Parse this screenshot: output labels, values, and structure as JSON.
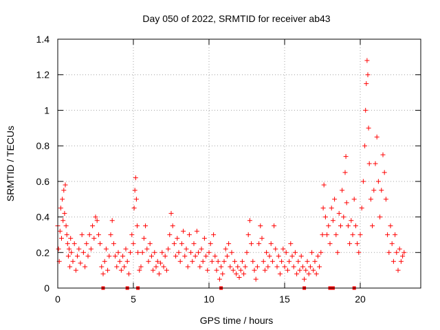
{
  "chart_data": {
    "type": "scatter",
    "title": "Day 050 of 2022, SRMTID for receiver ab43",
    "xlabel": "GPS time / hours",
    "ylabel": "SRMTID / TECUs",
    "xlim": [
      0,
      24
    ],
    "ylim": [
      0,
      1.4
    ],
    "xticks": [
      0,
      5,
      10,
      15,
      20
    ],
    "yticks": [
      0,
      0.2,
      0.4,
      0.6,
      0.8,
      1,
      1.2,
      1.4
    ],
    "xtick_labels": [
      "0",
      "5",
      "10",
      "15",
      "20"
    ],
    "ytick_labels": [
      "0",
      "0.2",
      "0.4",
      "0.6",
      "0.8",
      "1",
      "1.2",
      "1.4"
    ],
    "grid": true,
    "marker": "plus",
    "color": "#ff0000",
    "series": [
      {
        "name": "SRMTID ab43",
        "points": [
          [
            0.0,
            0.35
          ],
          [
            0.05,
            0.22
          ],
          [
            0.1,
            0.15
          ],
          [
            0.15,
            0.32
          ],
          [
            0.2,
            0.45
          ],
          [
            0.25,
            0.28
          ],
          [
            0.3,
            0.5
          ],
          [
            0.35,
            0.38
          ],
          [
            0.4,
            0.55
          ],
          [
            0.45,
            0.42
          ],
          [
            0.5,
            0.58
          ],
          [
            0.55,
            0.35
          ],
          [
            0.6,
            0.3
          ],
          [
            0.65,
            0.25
          ],
          [
            0.7,
            0.18
          ],
          [
            0.75,
            0.22
          ],
          [
            0.8,
            0.12
          ],
          [
            0.85,
            0.28
          ],
          [
            0.9,
            0.2
          ],
          [
            1.0,
            0.15
          ],
          [
            1.1,
            0.25
          ],
          [
            1.2,
            0.1
          ],
          [
            1.3,
            0.18
          ],
          [
            1.4,
            0.22
          ],
          [
            1.5,
            0.14
          ],
          [
            1.6,
            0.3
          ],
          [
            1.7,
            0.2
          ],
          [
            1.8,
            0.12
          ],
          [
            1.9,
            0.25
          ],
          [
            2.0,
            0.18
          ],
          [
            2.1,
            0.3
          ],
          [
            2.2,
            0.22
          ],
          [
            2.3,
            0.35
          ],
          [
            2.4,
            0.28
          ],
          [
            2.5,
            0.4
          ],
          [
            2.6,
            0.38
          ],
          [
            2.7,
            0.3
          ],
          [
            2.8,
            0.25
          ],
          [
            2.9,
            0.12
          ],
          [
            3.0,
            0.08
          ],
          [
            3.1,
            0.15
          ],
          [
            3.2,
            0.22
          ],
          [
            3.3,
            0.1
          ],
          [
            3.4,
            0.18
          ],
          [
            3.5,
            0.3
          ],
          [
            3.6,
            0.38
          ],
          [
            3.7,
            0.25
          ],
          [
            3.8,
            0.18
          ],
          [
            3.9,
            0.12
          ],
          [
            4.0,
            0.2
          ],
          [
            4.1,
            0.15
          ],
          [
            4.2,
            0.1
          ],
          [
            4.3,
            0.18
          ],
          [
            4.4,
            0.12
          ],
          [
            4.5,
            0.22
          ],
          [
            4.6,
            0.15
          ],
          [
            4.7,
            0.08
          ],
          [
            4.8,
            0.2
          ],
          [
            4.9,
            0.3
          ],
          [
            5.0,
            0.25
          ],
          [
            5.05,
            0.45
          ],
          [
            5.1,
            0.55
          ],
          [
            5.15,
            0.62
          ],
          [
            5.2,
            0.5
          ],
          [
            5.25,
            0.35
          ],
          [
            5.3,
            0.2
          ],
          [
            5.4,
            0.1
          ],
          [
            5.5,
            0.12
          ],
          [
            5.6,
            0.2
          ],
          [
            5.7,
            0.28
          ],
          [
            5.8,
            0.35
          ],
          [
            5.9,
            0.22
          ],
          [
            6.0,
            0.15
          ],
          [
            6.1,
            0.25
          ],
          [
            6.2,
            0.18
          ],
          [
            6.3,
            0.1
          ],
          [
            6.4,
            0.2
          ],
          [
            6.5,
            0.12
          ],
          [
            6.6,
            0.15
          ],
          [
            6.7,
            0.08
          ],
          [
            6.8,
            0.14
          ],
          [
            6.9,
            0.2
          ],
          [
            7.0,
            0.12
          ],
          [
            7.1,
            0.18
          ],
          [
            7.2,
            0.1
          ],
          [
            7.3,
            0.22
          ],
          [
            7.4,
            0.3
          ],
          [
            7.5,
            0.42
          ],
          [
            7.6,
            0.35
          ],
          [
            7.7,
            0.25
          ],
          [
            7.8,
            0.18
          ],
          [
            7.9,
            0.28
          ],
          [
            8.0,
            0.2
          ],
          [
            8.1,
            0.15
          ],
          [
            8.2,
            0.25
          ],
          [
            8.3,
            0.32
          ],
          [
            8.4,
            0.18
          ],
          [
            8.5,
            0.22
          ],
          [
            8.6,
            0.12
          ],
          [
            8.7,
            0.3
          ],
          [
            8.8,
            0.2
          ],
          [
            8.9,
            0.15
          ],
          [
            9.0,
            0.25
          ],
          [
            9.1,
            0.18
          ],
          [
            9.2,
            0.32
          ],
          [
            9.3,
            0.2
          ],
          [
            9.4,
            0.12
          ],
          [
            9.5,
            0.22
          ],
          [
            9.6,
            0.15
          ],
          [
            9.7,
            0.28
          ],
          [
            9.8,
            0.18
          ],
          [
            9.9,
            0.1
          ],
          [
            10.0,
            0.2
          ],
          [
            10.1,
            0.25
          ],
          [
            10.2,
            0.15
          ],
          [
            10.3,
            0.3
          ],
          [
            10.4,
            0.18
          ],
          [
            10.5,
            0.1
          ],
          [
            10.6,
            0.15
          ],
          [
            10.7,
            0.05
          ],
          [
            10.8,
            0.12
          ],
          [
            10.9,
            0.08
          ],
          [
            11.0,
            0.15
          ],
          [
            11.1,
            0.22
          ],
          [
            11.2,
            0.18
          ],
          [
            11.3,
            0.25
          ],
          [
            11.4,
            0.12
          ],
          [
            11.5,
            0.2
          ],
          [
            11.6,
            0.1
          ],
          [
            11.7,
            0.15
          ],
          [
            11.8,
            0.08
          ],
          [
            11.9,
            0.12
          ],
          [
            12.0,
            0.06
          ],
          [
            12.1,
            0.1
          ],
          [
            12.2,
            0.15
          ],
          [
            12.3,
            0.08
          ],
          [
            12.4,
            0.12
          ],
          [
            12.5,
            0.2
          ],
          [
            12.6,
            0.3
          ],
          [
            12.7,
            0.38
          ],
          [
            12.8,
            0.25
          ],
          [
            12.9,
            0.15
          ],
          [
            13.0,
            0.1
          ],
          [
            13.1,
            0.05
          ],
          [
            13.2,
            0.12
          ],
          [
            13.3,
            0.25
          ],
          [
            13.4,
            0.35
          ],
          [
            13.5,
            0.28
          ],
          [
            13.6,
            0.15
          ],
          [
            13.7,
            0.1
          ],
          [
            13.8,
            0.2
          ],
          [
            13.9,
            0.12
          ],
          [
            14.0,
            0.18
          ],
          [
            14.1,
            0.25
          ],
          [
            14.2,
            0.15
          ],
          [
            14.3,
            0.35
          ],
          [
            14.4,
            0.22
          ],
          [
            14.5,
            0.12
          ],
          [
            14.6,
            0.18
          ],
          [
            14.7,
            0.08
          ],
          [
            14.8,
            0.15
          ],
          [
            14.9,
            0.22
          ],
          [
            15.0,
            0.12
          ],
          [
            15.1,
            0.2
          ],
          [
            15.2,
            0.1
          ],
          [
            15.3,
            0.15
          ],
          [
            15.4,
            0.25
          ],
          [
            15.5,
            0.18
          ],
          [
            15.6,
            0.12
          ],
          [
            15.7,
            0.2
          ],
          [
            15.8,
            0.08
          ],
          [
            15.9,
            0.15
          ],
          [
            16.0,
            0.1
          ],
          [
            16.1,
            0.18
          ],
          [
            16.2,
            0.12
          ],
          [
            16.3,
            0.05
          ],
          [
            16.4,
            0.1
          ],
          [
            16.5,
            0.15
          ],
          [
            16.6,
            0.08
          ],
          [
            16.7,
            0.12
          ],
          [
            16.8,
            0.2
          ],
          [
            16.9,
            0.1
          ],
          [
            17.0,
            0.15
          ],
          [
            17.1,
            0.08
          ],
          [
            17.2,
            0.18
          ],
          [
            17.3,
            0.12
          ],
          [
            17.4,
            0.2
          ],
          [
            17.5,
            0.3
          ],
          [
            17.55,
            0.45
          ],
          [
            17.6,
            0.58
          ],
          [
            17.7,
            0.4
          ],
          [
            17.8,
            0.3
          ],
          [
            17.9,
            0.35
          ],
          [
            18.0,
            0.25
          ],
          [
            18.1,
            0.45
          ],
          [
            18.2,
            0.38
          ],
          [
            18.3,
            0.5
          ],
          [
            18.4,
            0.3
          ],
          [
            18.5,
            0.2
          ],
          [
            18.6,
            0.42
          ],
          [
            18.7,
            0.35
          ],
          [
            18.8,
            0.55
          ],
          [
            18.9,
            0.4
          ],
          [
            19.0,
            0.65
          ],
          [
            19.05,
            0.74
          ],
          [
            19.1,
            0.48
          ],
          [
            19.2,
            0.35
          ],
          [
            19.3,
            0.25
          ],
          [
            19.4,
            0.38
          ],
          [
            19.5,
            0.3
          ],
          [
            19.6,
            0.5
          ],
          [
            19.7,
            0.35
          ],
          [
            19.8,
            0.25
          ],
          [
            19.9,
            0.2
          ],
          [
            20.0,
            0.3
          ],
          [
            20.1,
            0.45
          ],
          [
            20.2,
            0.6
          ],
          [
            20.3,
            0.8
          ],
          [
            20.35,
            1.0
          ],
          [
            20.4,
            1.15
          ],
          [
            20.45,
            1.28
          ],
          [
            20.5,
            1.2
          ],
          [
            20.55,
            0.9
          ],
          [
            20.6,
            0.7
          ],
          [
            20.7,
            0.5
          ],
          [
            20.8,
            0.35
          ],
          [
            20.9,
            0.55
          ],
          [
            21.0,
            0.7
          ],
          [
            21.1,
            0.85
          ],
          [
            21.2,
            0.6
          ],
          [
            21.3,
            0.4
          ],
          [
            21.4,
            0.55
          ],
          [
            21.5,
            0.75
          ],
          [
            21.6,
            0.65
          ],
          [
            21.7,
            0.5
          ],
          [
            21.8,
            0.3
          ],
          [
            21.9,
            0.2
          ],
          [
            22.0,
            0.35
          ],
          [
            22.1,
            0.25
          ],
          [
            22.2,
            0.15
          ],
          [
            22.3,
            0.3
          ],
          [
            22.4,
            0.2
          ],
          [
            22.5,
            0.1
          ],
          [
            22.6,
            0.22
          ],
          [
            22.7,
            0.15
          ],
          [
            22.8,
            0.18
          ],
          [
            22.9,
            0.2
          ]
        ]
      }
    ],
    "axis_markers_x": [
      3.0,
      4.6,
      5.3,
      10.8,
      16.3,
      18.0,
      18.2,
      19.6
    ]
  }
}
